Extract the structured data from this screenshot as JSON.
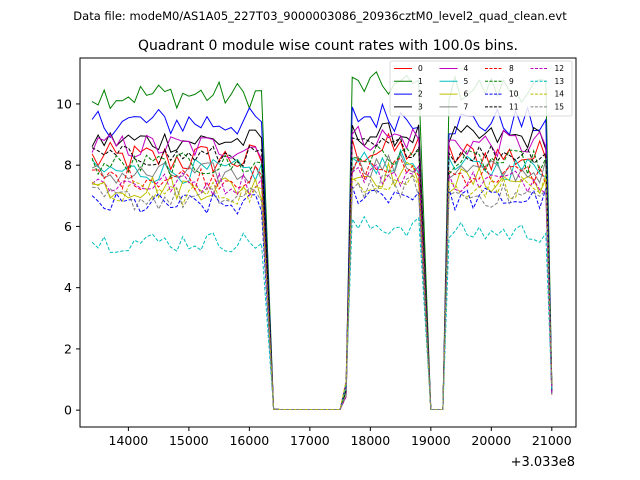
{
  "chart_data": {
    "type": "line",
    "suptitle": "Data file: modeM0/AS1A05_227T03_9000003086_20936cztM0_level2_quad_clean.evt",
    "title": "Quadrant 0 module wise count rates with 100.0s bins.",
    "xlabel": "",
    "ylabel": "",
    "x_offset_label": "+3.033e8",
    "xlim": [
      13200,
      21400
    ],
    "ylim": [
      -0.55,
      11.5
    ],
    "xticks": [
      14000,
      15000,
      16000,
      17000,
      18000,
      19000,
      20000,
      21000
    ],
    "yticks": [
      0,
      2,
      4,
      6,
      8,
      10
    ],
    "legend_position": "top-right",
    "segments": [
      {
        "start": 13400,
        "end": 16200,
        "npts": 29
      },
      {
        "start": 17700,
        "end": 18800,
        "npts": 12
      },
      {
        "start": 19300,
        "end": 20900,
        "npts": 17
      }
    ],
    "series": [
      {
        "name": "0",
        "color": "#ff0000",
        "dash": "solid",
        "means": [
          8.2,
          8.5,
          8.3
        ],
        "amplitude": 0.55
      },
      {
        "name": "1",
        "color": "#008000",
        "dash": "solid",
        "means": [
          10.3,
          10.6,
          10.5
        ],
        "amplitude": 0.45
      },
      {
        "name": "2",
        "color": "#0000ff",
        "dash": "solid",
        "means": [
          9.4,
          9.6,
          9.4
        ],
        "amplitude": 0.5
      },
      {
        "name": "3",
        "color": "#000000",
        "dash": "solid",
        "means": [
          8.8,
          9.0,
          8.9
        ],
        "amplitude": 0.4
      },
      {
        "name": "4",
        "color": "#bf00bf",
        "dash": "solid",
        "means": [
          8.6,
          8.9,
          8.7
        ],
        "amplitude": 0.45
      },
      {
        "name": "5",
        "color": "#00bfbf",
        "dash": "solid",
        "means": [
          7.8,
          8.1,
          7.9
        ],
        "amplitude": 0.4
      },
      {
        "name": "6",
        "color": "#bfbf00",
        "dash": "solid",
        "means": [
          7.3,
          7.7,
          7.5
        ],
        "amplitude": 0.45
      },
      {
        "name": "7",
        "color": "#808080",
        "dash": "solid",
        "means": [
          7.7,
          8.0,
          7.8
        ],
        "amplitude": 0.4
      },
      {
        "name": "8",
        "color": "#ff0000",
        "dash": "dashed",
        "means": [
          7.6,
          7.9,
          7.7
        ],
        "amplitude": 0.4
      },
      {
        "name": "9",
        "color": "#008000",
        "dash": "dashed",
        "means": [
          8.0,
          8.3,
          8.1
        ],
        "amplitude": 0.4
      },
      {
        "name": "10",
        "color": "#0000ff",
        "dash": "dashed",
        "means": [
          6.7,
          7.1,
          6.9
        ],
        "amplitude": 0.4
      },
      {
        "name": "11",
        "color": "#000000",
        "dash": "dashed",
        "means": [
          8.3,
          8.6,
          8.4
        ],
        "amplitude": 0.35
      },
      {
        "name": "12",
        "color": "#bf00bf",
        "dash": "dashed",
        "means": [
          7.4,
          7.7,
          7.5
        ],
        "amplitude": 0.4
      },
      {
        "name": "13",
        "color": "#00bfbf",
        "dash": "dashed",
        "means": [
          5.5,
          6.0,
          5.8
        ],
        "amplitude": 0.35
      },
      {
        "name": "14",
        "color": "#bfbf00",
        "dash": "dashed",
        "means": [
          7.1,
          7.5,
          7.3
        ],
        "amplitude": 0.4
      },
      {
        "name": "15",
        "color": "#808080",
        "dash": "dashed",
        "means": [
          6.9,
          7.3,
          7.0
        ],
        "amplitude": 0.4
      }
    ]
  }
}
